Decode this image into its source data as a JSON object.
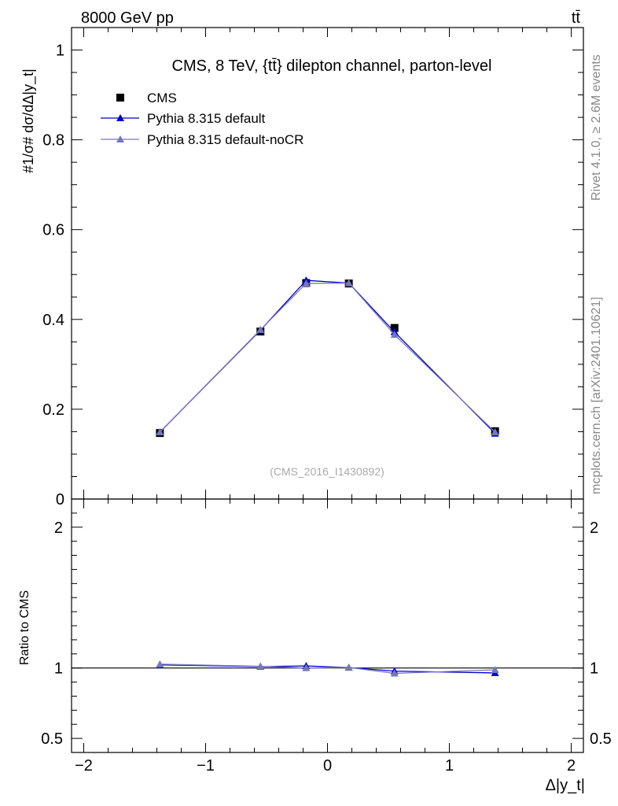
{
  "header": {
    "left": "8000 GeV pp",
    "right": "tt̄"
  },
  "side_labels": {
    "rivet": "Rivet 4.1.0, ≥ 2.6M events",
    "mcplots": "mcplots.cern.ch [arXiv:2401.10621]"
  },
  "colors": {
    "cms": "#000000",
    "default": "#0000cc",
    "nocr": "#7777bb"
  },
  "chart_data": [
    {
      "type": "line",
      "panel": "main",
      "title": "CMS, 8 TeV, {tt̄} dilepton channel, parton-level",
      "watermark": "(CMS_2016_I1430892)",
      "ylabel": "#1/σ# dσ/dΔ|y_t|",
      "ylim": [
        0,
        1.05
      ],
      "yticks": [
        "0",
        "0.2",
        "0.4",
        "0.6",
        "0.8",
        "1"
      ],
      "legend_position": "top-left",
      "series": [
        {
          "name": "CMS",
          "marker": "square",
          "x": [
            -1.375,
            -0.55,
            -0.175,
            0.175,
            0.55,
            1.375
          ],
          "values": [
            0.147,
            0.373,
            0.481,
            0.48,
            0.381,
            0.151
          ]
        },
        {
          "name": "Pythia 8.315 default",
          "marker": "triangle",
          "x": [
            -1.375,
            -0.55,
            -0.175,
            0.175,
            0.55,
            1.375
          ],
          "values": [
            0.149,
            0.376,
            0.487,
            0.481,
            0.372,
            0.146
          ]
        },
        {
          "name": "Pythia 8.315 default-noCR",
          "marker": "triangle",
          "x": [
            -1.375,
            -0.55,
            -0.175,
            0.175,
            0.55,
            1.375
          ],
          "values": [
            0.149,
            0.377,
            0.48,
            0.481,
            0.366,
            0.149
          ]
        }
      ]
    },
    {
      "type": "line",
      "panel": "ratio",
      "ylabel": "Ratio to CMS",
      "xlabel": "Δ|y_t|",
      "xlim": [
        -2.1,
        2.1
      ],
      "xticks": [
        "−2",
        "−1",
        "0",
        "1",
        "2"
      ],
      "ylim": [
        0.4,
        2.2
      ],
      "yticks": [
        "0.5",
        "1",
        "2"
      ],
      "series": [
        {
          "name": "Pythia 8.315 default",
          "x": [
            -1.375,
            -0.55,
            -0.175,
            0.175,
            0.55,
            1.375
          ],
          "values": [
            1.022,
            1.01,
            1.015,
            1.003,
            0.978,
            0.965
          ]
        },
        {
          "name": "Pythia 8.315 default-noCR",
          "x": [
            -1.375,
            -0.55,
            -0.175,
            0.175,
            0.55,
            1.375
          ],
          "values": [
            1.027,
            1.012,
            1.0,
            1.004,
            0.962,
            0.987
          ]
        }
      ]
    }
  ]
}
